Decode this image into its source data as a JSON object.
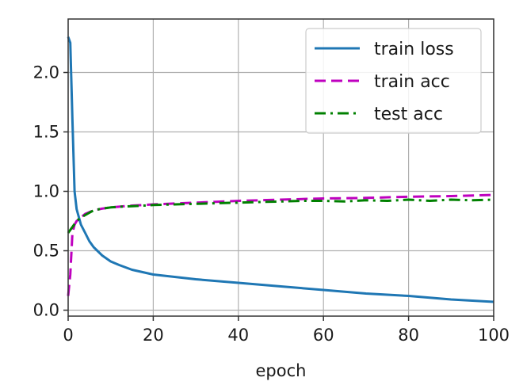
{
  "chart_data": {
    "type": "line",
    "xlabel": "epoch",
    "ylabel": "",
    "xlim": [
      0,
      100
    ],
    "ylim": [
      -0.05,
      2.45
    ],
    "xticks": [
      0,
      20,
      40,
      60,
      80,
      100
    ],
    "yticks": [
      0.0,
      0.5,
      1.0,
      1.5,
      2.0
    ],
    "xtick_labels": [
      "0",
      "20",
      "40",
      "60",
      "80",
      "100"
    ],
    "ytick_labels": [
      "0.0",
      "0.5",
      "1.0",
      "1.5",
      "2.0"
    ],
    "grid": true,
    "legend_position": "top-right",
    "series": [
      {
        "name": "train loss",
        "color": "#1f77b4",
        "style": "solid",
        "x": [
          0,
          0.5,
          1,
          1.5,
          2,
          3,
          4,
          5,
          6,
          8,
          10,
          12,
          15,
          20,
          25,
          30,
          40,
          50,
          60,
          70,
          80,
          90,
          100
        ],
        "y": [
          2.3,
          2.25,
          1.6,
          1.0,
          0.85,
          0.72,
          0.65,
          0.58,
          0.53,
          0.46,
          0.41,
          0.38,
          0.34,
          0.3,
          0.28,
          0.26,
          0.23,
          0.2,
          0.17,
          0.14,
          0.12,
          0.09,
          0.07
        ]
      },
      {
        "name": "train acc",
        "color": "#bf00bf",
        "style": "dashed",
        "x": [
          0,
          0.5,
          1,
          1.5,
          2,
          3,
          4,
          6,
          8,
          10,
          15,
          20,
          30,
          40,
          50,
          60,
          70,
          80,
          90,
          100
        ],
        "y": [
          0.12,
          0.3,
          0.65,
          0.72,
          0.75,
          0.78,
          0.81,
          0.84,
          0.855,
          0.865,
          0.88,
          0.89,
          0.905,
          0.92,
          0.93,
          0.94,
          0.945,
          0.955,
          0.96,
          0.97
        ]
      },
      {
        "name": "test acc",
        "color": "#008000",
        "style": "dashdot",
        "x": [
          0,
          1,
          2,
          3,
          4,
          5,
          6,
          8,
          10,
          12,
          15,
          20,
          25,
          30,
          35,
          40,
          45,
          50,
          55,
          60,
          65,
          70,
          75,
          80,
          85,
          90,
          95,
          100
        ],
        "y": [
          0.65,
          0.7,
          0.75,
          0.78,
          0.8,
          0.82,
          0.84,
          0.855,
          0.865,
          0.87,
          0.875,
          0.885,
          0.89,
          0.895,
          0.9,
          0.905,
          0.91,
          0.915,
          0.92,
          0.92,
          0.915,
          0.925,
          0.92,
          0.93,
          0.92,
          0.93,
          0.925,
          0.93
        ]
      }
    ]
  }
}
